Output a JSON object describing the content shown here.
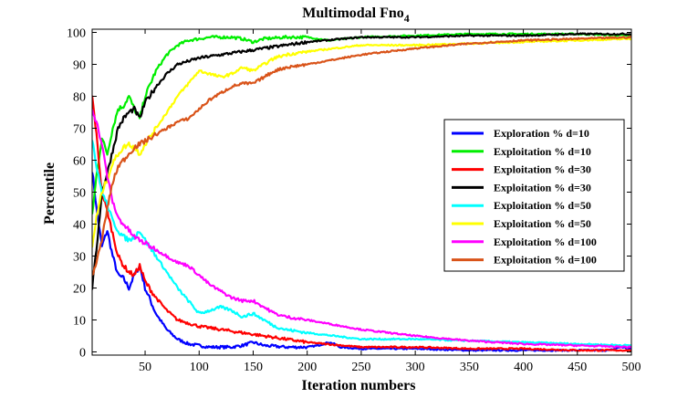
{
  "chart_data": {
    "type": "line",
    "title": "Multimodal Fno",
    "title_subscript": "4",
    "xlabel": "Iteration numbers",
    "ylabel": "Percentile",
    "xlim": [
      1,
      500
    ],
    "ylim": [
      -1,
      101
    ],
    "xticks": [
      50,
      100,
      150,
      200,
      250,
      300,
      350,
      400,
      450,
      500
    ],
    "yticks": [
      0,
      10,
      20,
      30,
      40,
      50,
      60,
      70,
      80,
      90,
      100
    ],
    "legend_position": "right",
    "series": [
      {
        "name": "Exploration % d=10",
        "color": "#0000ff",
        "x": [
          1,
          5,
          10,
          15,
          20,
          25,
          30,
          35,
          40,
          45,
          50,
          60,
          70,
          80,
          90,
          100,
          110,
          120,
          130,
          140,
          150,
          160,
          180,
          200,
          210,
          220,
          225,
          230,
          250,
          300,
          350,
          400,
          450,
          480,
          490,
          500
        ],
        "y": [
          57,
          45,
          33,
          38,
          30,
          24,
          23,
          20,
          24,
          27,
          20,
          12,
          7,
          4,
          2.5,
          2,
          1.5,
          1.5,
          1.5,
          2,
          3,
          2,
          1.5,
          1.5,
          2,
          3,
          2.5,
          1.5,
          1,
          1,
          0.5,
          0.5,
          0.5,
          0.5,
          1.5,
          1
        ]
      },
      {
        "name": "Exploitation % d=10",
        "color": "#00ee00",
        "x": [
          1,
          5,
          10,
          15,
          20,
          25,
          30,
          35,
          40,
          45,
          50,
          60,
          70,
          80,
          90,
          100,
          110,
          120,
          130,
          140,
          150,
          160,
          180,
          200,
          220,
          250,
          300,
          350,
          400,
          450,
          500
        ],
        "y": [
          43,
          55,
          67,
          62,
          70,
          76,
          77,
          80,
          76,
          73,
          80,
          88,
          93,
          96,
          97.5,
          98,
          98.5,
          98.5,
          98.5,
          98,
          97,
          98,
          98.5,
          98.5,
          97.5,
          98.5,
          99,
          99.5,
          99.5,
          99.5,
          99
        ]
      },
      {
        "name": "Exploitation % d=30",
        "color": "#ff0000",
        "x": [
          1,
          5,
          10,
          15,
          20,
          25,
          30,
          35,
          40,
          45,
          50,
          60,
          70,
          80,
          90,
          100,
          120,
          140,
          160,
          180,
          200,
          250,
          300,
          350,
          400,
          450,
          500
        ],
        "y": [
          80,
          68,
          50,
          44,
          37,
          30,
          27,
          25,
          24,
          27,
          22,
          17,
          13,
          10,
          9,
          8,
          7,
          6,
          5,
          4,
          3,
          1.5,
          1.5,
          1,
          1,
          0.5,
          0.5
        ]
      },
      {
        "name": "Exploitation % d=30",
        "color": "#000000",
        "x": [
          1,
          5,
          10,
          15,
          20,
          25,
          30,
          35,
          40,
          45,
          50,
          60,
          70,
          80,
          90,
          100,
          120,
          140,
          160,
          180,
          200,
          250,
          300,
          350,
          400,
          450,
          500
        ],
        "y": [
          20,
          32,
          50,
          56,
          63,
          70,
          73,
          75,
          76,
          73,
          78,
          83,
          87,
          90,
          91,
          92,
          93,
          94,
          95,
          96,
          97,
          98.5,
          98.5,
          99,
          99,
          99.5,
          99.5
        ]
      },
      {
        "name": "Exploitation % d=50",
        "color": "#00ffff",
        "x": [
          1,
          5,
          10,
          15,
          20,
          25,
          30,
          35,
          40,
          45,
          50,
          60,
          70,
          80,
          90,
          100,
          110,
          120,
          130,
          140,
          150,
          160,
          170,
          180,
          200,
          250,
          300,
          350,
          400,
          450,
          500
        ],
        "y": [
          67,
          58,
          50,
          46,
          41,
          38,
          36,
          35,
          36,
          38,
          35,
          30,
          25,
          20,
          16,
          12,
          13,
          14,
          13,
          11,
          12,
          10,
          8,
          7,
          6,
          4,
          4,
          3.5,
          3,
          2.5,
          2
        ]
      },
      {
        "name": "Exploitation % d=50",
        "color": "#ffff00",
        "x": [
          1,
          5,
          10,
          15,
          20,
          25,
          30,
          35,
          40,
          45,
          50,
          60,
          70,
          80,
          90,
          100,
          110,
          120,
          130,
          140,
          150,
          160,
          170,
          180,
          200,
          250,
          300,
          350,
          400,
          450,
          500
        ],
        "y": [
          33,
          42,
          50,
          54,
          59,
          62,
          64,
          65,
          64,
          62,
          65,
          70,
          75,
          80,
          84,
          88,
          87,
          86,
          87,
          89,
          88,
          90,
          92,
          93,
          94,
          96,
          96,
          96.5,
          97,
          97.5,
          98
        ]
      },
      {
        "name": "Exploitation % d=100",
        "color": "#ff00ff",
        "x": [
          1,
          5,
          10,
          15,
          20,
          25,
          30,
          35,
          40,
          50,
          60,
          70,
          80,
          90,
          100,
          110,
          120,
          130,
          140,
          150,
          160,
          170,
          180,
          200,
          250,
          300,
          350,
          400,
          450,
          500
        ],
        "y": [
          76,
          72,
          65,
          55,
          47,
          42,
          40,
          38,
          36,
          34,
          32,
          30,
          28,
          27,
          24,
          21,
          19,
          17,
          16,
          16,
          14,
          12,
          11,
          10,
          7,
          5,
          3.5,
          2.5,
          2,
          1.5
        ]
      },
      {
        "name": "Exploitation % d=100",
        "color": "#d95319",
        "x": [
          1,
          5,
          10,
          15,
          20,
          25,
          30,
          35,
          40,
          50,
          60,
          70,
          80,
          90,
          100,
          110,
          120,
          130,
          140,
          150,
          160,
          170,
          180,
          200,
          250,
          300,
          350,
          400,
          450,
          500
        ],
        "y": [
          24,
          28,
          35,
          45,
          53,
          58,
          60,
          62,
          64,
          66,
          68,
          70,
          72,
          73,
          76,
          79,
          81,
          83,
          84,
          84,
          86,
          88,
          89,
          90,
          93,
          95,
          96.5,
          97.5,
          98,
          98.5
        ]
      }
    ]
  }
}
